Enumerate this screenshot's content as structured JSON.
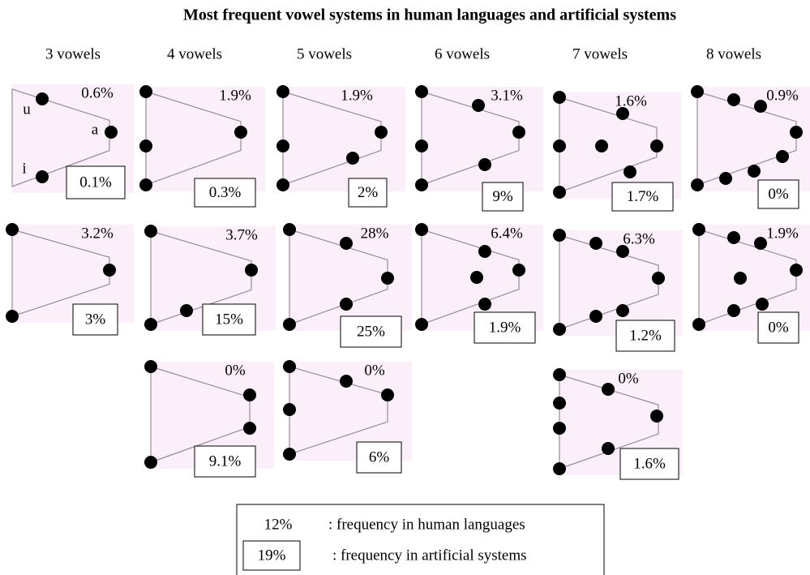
{
  "title": "Most frequent vowel systems in human languages and artificial systems",
  "columns": [
    "3 vowels",
    "4 vowels",
    "5 vowels",
    "6 vowels",
    "7 vowels",
    "8 vowels"
  ],
  "vowel_labels": [
    "u",
    "a",
    "i"
  ],
  "panels": [
    {
      "human": "0.6%",
      "artificial": "0.1%"
    },
    {
      "human": "1.9%",
      "artificial": "0.3%"
    },
    {
      "human": "1.9%",
      "artificial": "2%"
    },
    {
      "human": "3.1%",
      "artificial": "9%"
    },
    {
      "human": "1.6%",
      "artificial": "1.7%"
    },
    {
      "human": "0.9%",
      "artificial": "0%"
    },
    {
      "human": "3.2%",
      "artificial": "3%"
    },
    {
      "human": "3.7%",
      "artificial": "15%"
    },
    {
      "human": "28%",
      "artificial": "25%"
    },
    {
      "human": "6.4%",
      "artificial": "1.9%"
    },
    {
      "human": "6.3%",
      "artificial": "1.2%"
    },
    {
      "human": "1.9%",
      "artificial": "0%"
    },
    {
      "human": "0%",
      "artificial": "9.1%"
    },
    {
      "human": "0%",
      "artificial": "6%"
    },
    {
      "human": "0%",
      "artificial": "1.6%"
    }
  ],
  "legend": {
    "human_sample": "12%",
    "human_text": ": frequency in human languages",
    "artificial_sample": "19%",
    "artificial_text": ": frequency in artificial systems"
  }
}
